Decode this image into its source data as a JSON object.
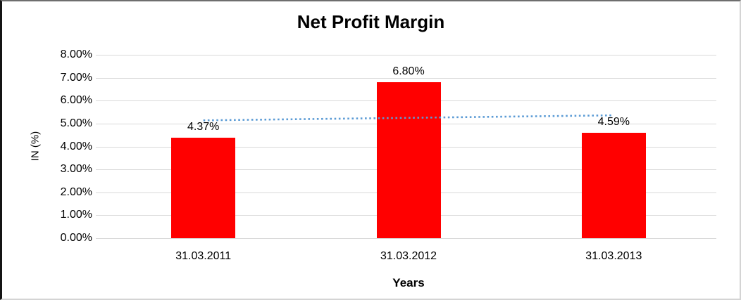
{
  "chart_data": {
    "type": "bar",
    "title": "Net Profit Margin",
    "categories": [
      "31.03.2011",
      "31.03.2012",
      "31.03.2013"
    ],
    "values": [
      4.37,
      6.8,
      4.59
    ],
    "data_labels": [
      "4.37%",
      "6.80%",
      "4.59%"
    ],
    "xlabel": "Years",
    "ylabel": "IN (%)",
    "ylim": [
      0,
      8
    ],
    "ytick_step": 1,
    "ytick_labels": [
      "0.00%",
      "1.00%",
      "2.00%",
      "3.00%",
      "4.00%",
      "5.00%",
      "6.00%",
      "7.00%",
      "8.00%"
    ],
    "grid": true,
    "legend": "none",
    "bar_color": "#FF0000",
    "gridline_color": "#D9D9D9",
    "text_color": "#000000",
    "trendline": {
      "type": "linear",
      "style": "dotted",
      "color": "#5B9BD5",
      "start_value": 5.14,
      "end_value": 5.36
    }
  }
}
